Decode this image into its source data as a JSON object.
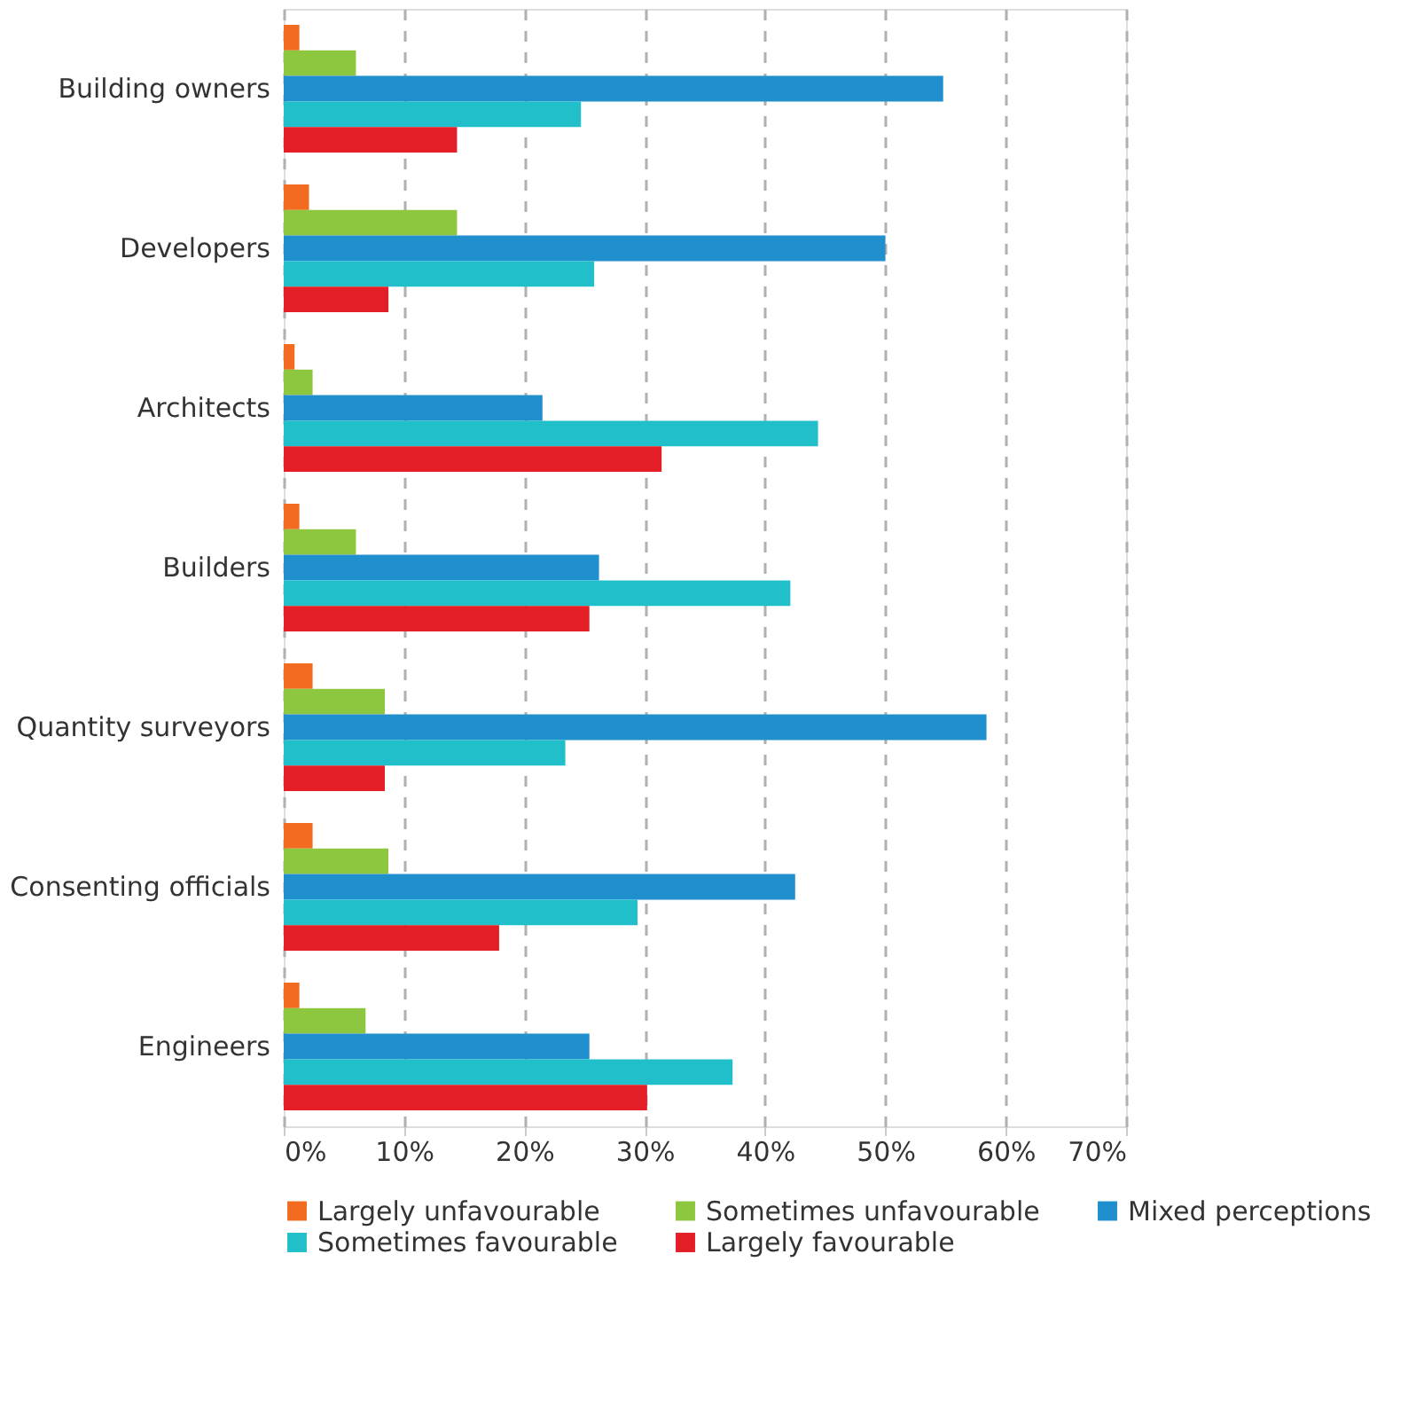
{
  "chart_data": {
    "type": "bar",
    "orientation": "horizontal",
    "categories": [
      "Building owners",
      "Developers",
      "Architects",
      "Builders",
      "Quantity surveyors",
      "Consenting officials",
      "Engineers"
    ],
    "series": [
      {
        "name": "Largely unfavourable",
        "color": "#f26b21",
        "values": [
          1.3,
          2.1,
          0.9,
          1.3,
          2.4,
          2.4,
          1.3
        ]
      },
      {
        "name": "Sometimes unfavourable",
        "color": "#8dc63f",
        "values": [
          6,
          14.4,
          2.4,
          6,
          8.4,
          8.7,
          6.8
        ]
      },
      {
        "name": "Mixed perceptions",
        "color": "#1f8fce",
        "values": [
          54.8,
          50,
          21.5,
          26.2,
          58.4,
          42.5,
          25.4
        ]
      },
      {
        "name": "Sometimes favourable",
        "color": "#20bfca",
        "values": [
          24.7,
          25.8,
          44.4,
          42.1,
          23.4,
          29.4,
          37.3
        ]
      },
      {
        "name": "Largely favourable",
        "color": "#e31e26",
        "values": [
          14.4,
          8.7,
          31.4,
          25.4,
          8.4,
          17.9,
          30.2
        ]
      }
    ],
    "xlim": [
      0,
      70
    ],
    "xticks": [
      {
        "value": 0,
        "label": "0%"
      },
      {
        "value": 10,
        "label": "10%"
      },
      {
        "value": 20,
        "label": "20%"
      },
      {
        "value": 30,
        "label": "30%"
      },
      {
        "value": 40,
        "label": "40%"
      },
      {
        "value": 50,
        "label": "50%"
      },
      {
        "value": 60,
        "label": "60%"
      },
      {
        "value": 70,
        "label": "70%"
      }
    ],
    "grid": "x",
    "legend": "bottom"
  }
}
